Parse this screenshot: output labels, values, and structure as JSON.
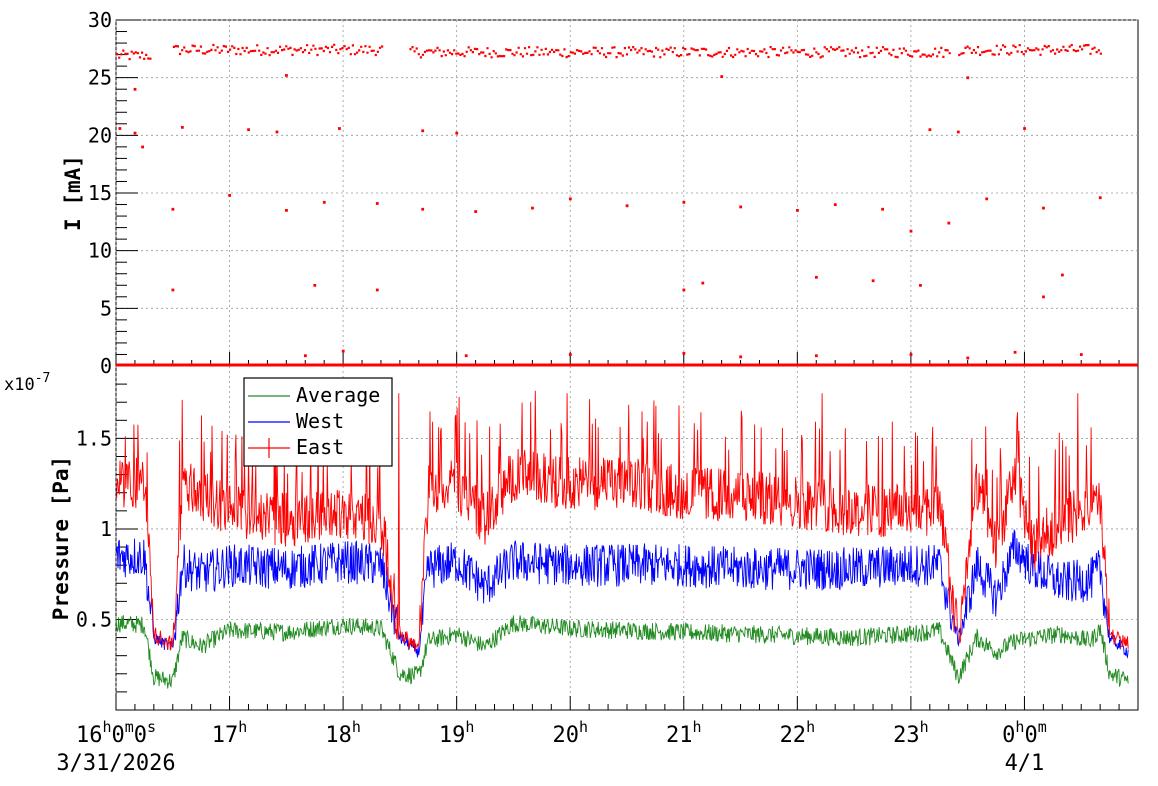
{
  "chart_data": [
    {
      "type": "scatter",
      "ylabel": "I [mA]",
      "ylim": [
        0,
        30
      ],
      "yticks": [
        "0",
        "5",
        "10",
        "15",
        "20",
        "25",
        "30"
      ],
      "grid": true,
      "color": "#ff0000",
      "series": [
        {
          "segments": [
            {
              "x": [
                "16:00",
                "16:18"
              ],
              "y": 27.0
            },
            {
              "x": [
                "16:30",
                "18:20"
              ],
              "y": 27.5
            },
            {
              "x": [
                "18:35",
                "23:20"
              ],
              "y": 27.3
            },
            {
              "x": [
                "23:25",
                "00:40"
              ],
              "y": 27.5
            }
          ],
          "outliers": [
            {
              "x": "16:02",
              "y": 20.6
            },
            {
              "x": "16:10",
              "y": 20.2
            },
            {
              "x": "16:14",
              "y": 19.0
            },
            {
              "x": "16:35",
              "y": 20.7
            },
            {
              "x": "17:10",
              "y": 20.5
            },
            {
              "x": "17:25",
              "y": 20.3
            },
            {
              "x": "17:58",
              "y": 20.6
            },
            {
              "x": "18:42",
              "y": 20.4
            },
            {
              "x": "19:00",
              "y": 20.2
            },
            {
              "x": "23:10",
              "y": 20.5
            },
            {
              "x": "23:25",
              "y": 20.3
            },
            {
              "x": "00:00",
              "y": 20.6
            },
            {
              "x": "16:30",
              "y": 13.6
            },
            {
              "x": "17:00",
              "y": 14.8
            },
            {
              "x": "17:30",
              "y": 13.5
            },
            {
              "x": "17:50",
              "y": 14.2
            },
            {
              "x": "18:18",
              "y": 14.1
            },
            {
              "x": "18:42",
              "y": 13.6
            },
            {
              "x": "19:10",
              "y": 13.4
            },
            {
              "x": "19:40",
              "y": 13.7
            },
            {
              "x": "20:00",
              "y": 14.5
            },
            {
              "x": "20:30",
              "y": 13.9
            },
            {
              "x": "21:00",
              "y": 14.2
            },
            {
              "x": "21:30",
              "y": 13.8
            },
            {
              "x": "22:00",
              "y": 13.5
            },
            {
              "x": "22:20",
              "y": 14.0
            },
            {
              "x": "22:45",
              "y": 13.6
            },
            {
              "x": "23:00",
              "y": 11.7
            },
            {
              "x": "23:20",
              "y": 12.4
            },
            {
              "x": "23:40",
              "y": 14.5
            },
            {
              "x": "00:10",
              "y": 13.7
            },
            {
              "x": "00:40",
              "y": 14.6
            },
            {
              "x": "16:30",
              "y": 6.6
            },
            {
              "x": "17:45",
              "y": 7.0
            },
            {
              "x": "18:18",
              "y": 6.6
            },
            {
              "x": "21:00",
              "y": 6.6
            },
            {
              "x": "21:10",
              "y": 7.2
            },
            {
              "x": "22:10",
              "y": 7.7
            },
            {
              "x": "22:40",
              "y": 7.4
            },
            {
              "x": "23:05",
              "y": 7.0
            },
            {
              "x": "00:10",
              "y": 6.0
            },
            {
              "x": "00:20",
              "y": 7.9
            },
            {
              "x": "16:10",
              "y": 24.0
            },
            {
              "x": "17:30",
              "y": 25.2
            },
            {
              "x": "21:20",
              "y": 25.1
            },
            {
              "x": "23:30",
              "y": 25.0
            },
            {
              "x": "17:40",
              "y": 0.9
            },
            {
              "x": "18:00",
              "y": 1.3
            },
            {
              "x": "19:05",
              "y": 0.9
            },
            {
              "x": "20:00",
              "y": 1.0
            },
            {
              "x": "21:00",
              "y": 1.1
            },
            {
              "x": "21:30",
              "y": 0.8
            },
            {
              "x": "22:10",
              "y": 0.9
            },
            {
              "x": "23:00",
              "y": 1.0
            },
            {
              "x": "23:30",
              "y": 0.7
            },
            {
              "x": "23:55",
              "y": 1.2
            },
            {
              "x": "00:30",
              "y": 1.0
            }
          ]
        }
      ]
    },
    {
      "type": "line",
      "ylabel": "Pressure [Pa]",
      "exponent_label": "x10",
      "exponent_value": "-7",
      "ylim": [
        0,
        1.9
      ],
      "yticks": [
        "0.5",
        "1",
        "1.5"
      ],
      "grid": true,
      "legend_position": "top-left",
      "series": [
        {
          "name": "Average",
          "color": "#228b22",
          "x": [
            "16:00",
            "16:15",
            "16:20",
            "16:30",
            "16:35",
            "16:45",
            "17:00",
            "17:30",
            "18:00",
            "18:20",
            "18:30",
            "18:40",
            "18:45",
            "19:00",
            "19:15",
            "19:30",
            "20:00",
            "20:30",
            "21:00",
            "21:30",
            "22:00",
            "22:30",
            "23:00",
            "23:15",
            "23:25",
            "23:35",
            "23:45",
            "23:55",
            "00:05",
            "00:20",
            "00:35",
            "00:40",
            "00:45",
            "00:55"
          ],
          "y": [
            0.48,
            0.47,
            0.18,
            0.16,
            0.4,
            0.35,
            0.44,
            0.43,
            0.47,
            0.45,
            0.2,
            0.19,
            0.38,
            0.42,
            0.35,
            0.48,
            0.45,
            0.44,
            0.43,
            0.42,
            0.41,
            0.4,
            0.42,
            0.44,
            0.18,
            0.4,
            0.32,
            0.38,
            0.4,
            0.42,
            0.38,
            0.45,
            0.2,
            0.16
          ],
          "noise": 0.05
        },
        {
          "name": "West",
          "color": "#0000ff",
          "x": [
            "16:00",
            "16:15",
            "16:20",
            "16:30",
            "16:35",
            "16:45",
            "17:00",
            "17:30",
            "18:00",
            "18:20",
            "18:30",
            "18:40",
            "18:45",
            "19:00",
            "19:15",
            "19:30",
            "20:00",
            "20:30",
            "21:00",
            "21:30",
            "22:00",
            "22:30",
            "23:00",
            "23:15",
            "23:25",
            "23:35",
            "23:45",
            "23:55",
            "00:05",
            "00:20",
            "00:35",
            "00:40",
            "00:45",
            "00:55"
          ],
          "y": [
            0.85,
            0.85,
            0.4,
            0.34,
            0.8,
            0.75,
            0.8,
            0.78,
            0.82,
            0.8,
            0.4,
            0.32,
            0.78,
            0.82,
            0.68,
            0.82,
            0.8,
            0.8,
            0.8,
            0.78,
            0.78,
            0.78,
            0.8,
            0.8,
            0.38,
            0.8,
            0.62,
            0.9,
            0.78,
            0.7,
            0.72,
            0.78,
            0.4,
            0.32
          ],
          "noise": 0.12
        },
        {
          "name": "East",
          "color": "#ff0000",
          "x": [
            "16:00",
            "16:15",
            "16:20",
            "16:30",
            "16:35",
            "16:45",
            "17:00",
            "17:30",
            "18:00",
            "18:20",
            "18:30",
            "18:40",
            "18:45",
            "19:00",
            "19:15",
            "19:30",
            "20:00",
            "20:30",
            "21:00",
            "21:30",
            "22:00",
            "22:30",
            "23:00",
            "23:15",
            "23:25",
            "23:35",
            "23:45",
            "23:55",
            "00:05",
            "00:20",
            "00:35",
            "00:40",
            "00:45",
            "00:55"
          ],
          "y": [
            1.25,
            1.25,
            0.42,
            0.36,
            1.25,
            1.2,
            1.1,
            1.05,
            1.1,
            1.05,
            0.42,
            0.34,
            1.2,
            1.25,
            1.05,
            1.3,
            1.25,
            1.25,
            1.2,
            1.18,
            1.15,
            1.1,
            1.1,
            1.12,
            0.4,
            1.25,
            0.9,
            1.3,
            0.9,
            1.05,
            1.1,
            1.15,
            0.42,
            0.36
          ],
          "noise": 0.15
        }
      ]
    }
  ],
  "x_axis": {
    "range": [
      "16:00",
      "01:00"
    ],
    "labels": [
      {
        "at": "16:00",
        "main": "16",
        "parts": [
          [
            "h",
            "0"
          ],
          [
            "m",
            "0"
          ],
          [
            "s",
            ""
          ]
        ],
        "date": "3/31/2026"
      },
      {
        "at": "17:00",
        "main": "17",
        "parts": [
          [
            "h",
            ""
          ]
        ]
      },
      {
        "at": "18:00",
        "main": "18",
        "parts": [
          [
            "h",
            ""
          ]
        ]
      },
      {
        "at": "19:00",
        "main": "19",
        "parts": [
          [
            "h",
            ""
          ]
        ]
      },
      {
        "at": "20:00",
        "main": "20",
        "parts": [
          [
            "h",
            ""
          ]
        ]
      },
      {
        "at": "21:00",
        "main": "21",
        "parts": [
          [
            "h",
            ""
          ]
        ]
      },
      {
        "at": "22:00",
        "main": "22",
        "parts": [
          [
            "h",
            ""
          ]
        ]
      },
      {
        "at": "23:00",
        "main": "23",
        "parts": [
          [
            "h",
            ""
          ]
        ]
      },
      {
        "at": "00:00",
        "main": "0",
        "parts": [
          [
            "h",
            "0"
          ],
          [
            "m",
            ""
          ]
        ],
        "date": "4/1"
      }
    ]
  }
}
